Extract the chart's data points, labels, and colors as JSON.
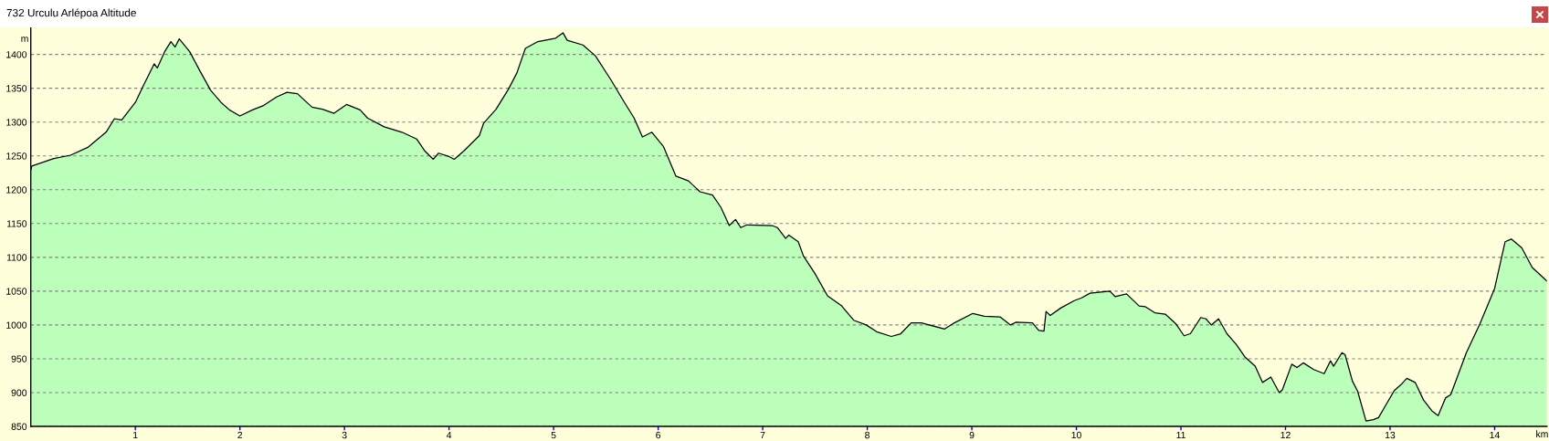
{
  "chart_data": {
    "type": "area",
    "title": "732 Urculu Arlépoa Altitude",
    "xlabel": "km",
    "ylabel": "m",
    "x": [
      0,
      0.01,
      0.22,
      0.38,
      0.55,
      0.72,
      0.8,
      0.87,
      1.0,
      1.08,
      1.18,
      1.21,
      1.28,
      1.34,
      1.38,
      1.42,
      1.52,
      1.62,
      1.72,
      1.82,
      1.9,
      2.0,
      2.12,
      2.22,
      2.35,
      2.45,
      2.55,
      2.69,
      2.79,
      2.9,
      3.02,
      3.15,
      3.22,
      3.38,
      3.55,
      3.69,
      3.77,
      3.85,
      3.9,
      4.0,
      4.05,
      4.14,
      4.29,
      4.33,
      4.45,
      4.57,
      4.65,
      4.73,
      4.85,
      5.02,
      5.09,
      5.13,
      5.28,
      5.4,
      5.55,
      5.67,
      5.77,
      5.85,
      5.94,
      6.05,
      6.17,
      6.29,
      6.4,
      6.52,
      6.6,
      6.68,
      6.74,
      6.79,
      6.85,
      7.09,
      7.14,
      7.22,
      7.25,
      7.34,
      7.39,
      7.5,
      7.62,
      7.75,
      7.87,
      7.99,
      8.09,
      8.23,
      8.32,
      8.42,
      8.52,
      8.74,
      8.82,
      9.01,
      9.12,
      9.27,
      9.37,
      9.42,
      9.58,
      9.64,
      9.69,
      9.71,
      9.75,
      9.85,
      9.98,
      10.05,
      10.13,
      10.32,
      10.37,
      10.48,
      10.6,
      10.66,
      10.75,
      10.85,
      10.95,
      11.03,
      11.09,
      11.19,
      11.24,
      11.29,
      11.36,
      11.44,
      11.53,
      11.61,
      11.71,
      11.78,
      11.86,
      11.94,
      11.97,
      12.06,
      12.11,
      12.17,
      12.27,
      12.37,
      12.43,
      12.46,
      12.54,
      12.57,
      12.64,
      12.69,
      12.77,
      12.84,
      12.89,
      12.95,
      13.04,
      13.1,
      13.16,
      13.24,
      13.32,
      13.4,
      13.46,
      13.53,
      13.58,
      13.73,
      13.86,
      14.0,
      14.1,
      14.16,
      14.26,
      14.36,
      14.45,
      14.5
    ],
    "series": [
      {
        "color": "#bbffbb",
        "values": [
          1229,
          1235,
          1246,
          1251,
          1263,
          1285,
          1305,
          1303,
          1329,
          1355,
          1386,
          1380,
          1404,
          1419,
          1411,
          1423,
          1404,
          1375,
          1347,
          1329,
          1318,
          1309,
          1318,
          1324,
          1337,
          1344,
          1342,
          1322,
          1319,
          1313,
          1326,
          1318,
          1306,
          1293,
          1285,
          1275,
          1257,
          1245,
          1254,
          1249,
          1245,
          1257,
          1280,
          1298,
          1319,
          1349,
          1373,
          1409,
          1419,
          1424,
          1432,
          1421,
          1414,
          1398,
          1362,
          1331,
          1306,
          1278,
          1285,
          1264,
          1220,
          1213,
          1197,
          1192,
          1174,
          1147,
          1156,
          1144,
          1148,
          1147,
          1144,
          1128,
          1133,
          1123,
          1102,
          1076,
          1043,
          1029,
          1007,
          1000,
          990,
          983,
          987,
          1003,
          1003,
          994,
          1002,
          1017,
          1013,
          1012,
          1000,
          1004,
          1003,
          992,
          991,
          1020,
          1014,
          1025,
          1036,
          1040,
          1047,
          1050,
          1042,
          1046,
          1028,
          1027,
          1018,
          1016,
          1002,
          984,
          987,
          1011,
          1009,
          1000,
          1009,
          987,
          971,
          953,
          939,
          915,
          923,
          900,
          904,
          942,
          937,
          944,
          934,
          928,
          947,
          939,
          959,
          956,
          917,
          902,
          858,
          860,
          863,
          879,
          903,
          911,
          921,
          915,
          889,
          873,
          866,
          892,
          897,
          959,
          1002,
          1054,
          1123,
          1127,
          1114,
          1085,
          1072,
          1065
        ]
      }
    ],
    "xlim": [
      0,
      14.5
    ],
    "ylim": [
      850,
      1440
    ],
    "xticks": [
      1,
      2,
      3,
      4,
      5,
      6,
      7,
      8,
      9,
      10,
      11,
      12,
      13,
      14
    ],
    "yticks": [
      850,
      900,
      950,
      1000,
      1050,
      1100,
      1150,
      1200,
      1250,
      1300,
      1350,
      1400
    ],
    "grid": "y"
  }
}
